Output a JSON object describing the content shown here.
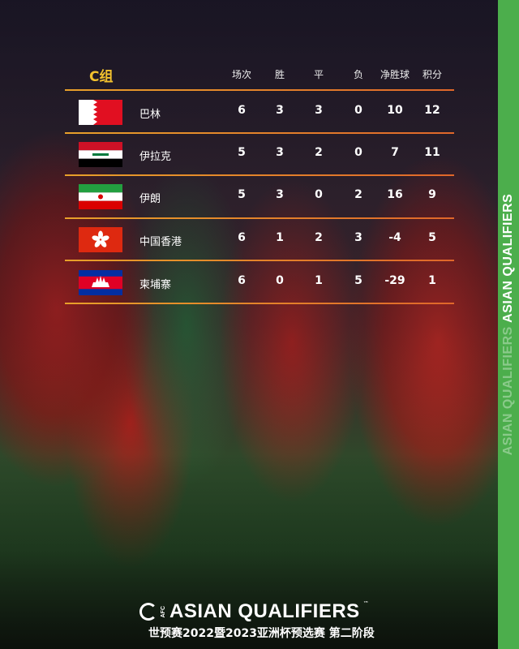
{
  "group_label": "C组",
  "headers": {
    "played": "场次",
    "won": "胜",
    "drawn": "平",
    "lost": "负",
    "gd": "净胜球",
    "points": "积分"
  },
  "rows": [
    {
      "flag": "bahrain-flag",
      "team": "巴林",
      "played": "6",
      "won": "3",
      "drawn": "3",
      "lost": "0",
      "gd": "10",
      "points": "12"
    },
    {
      "flag": "iraq-flag",
      "team": "伊拉克",
      "played": "5",
      "won": "3",
      "drawn": "2",
      "lost": "0",
      "gd": "7",
      "points": "11"
    },
    {
      "flag": "iran-flag",
      "team": "伊朗",
      "played": "5",
      "won": "3",
      "drawn": "0",
      "lost": "2",
      "gd": "16",
      "points": "9"
    },
    {
      "flag": "hong-kong-flag",
      "team": "中国香港",
      "played": "6",
      "won": "1",
      "drawn": "2",
      "lost": "3",
      "gd": "-4",
      "points": "5"
    },
    {
      "flag": "cambodia-flag",
      "team": "柬埔寨",
      "played": "6",
      "won": "0",
      "drawn": "1",
      "lost": "5",
      "gd": "-29",
      "points": "1"
    }
  ],
  "footer": {
    "logo_text": "ASIAN QUALIFIERS",
    "afc": "AFC",
    "tm": "™",
    "subtitle": "世预赛2022暨2023亚洲杯预选赛 第二阶段"
  },
  "side_strip": {
    "text": "ASIAN QUALIFIERS",
    "ghost": "ASIAN QUALIFIERS"
  },
  "colors": {
    "accent": "#f2c12e",
    "strip": "#4cae4c",
    "divider": "#e8a02a"
  }
}
